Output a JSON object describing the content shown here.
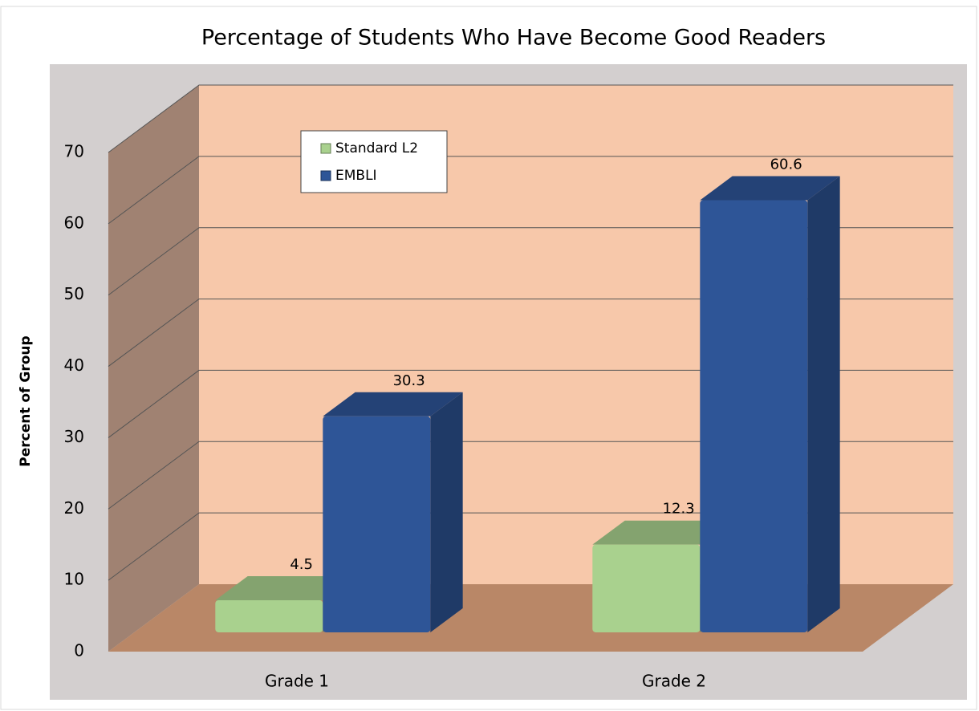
{
  "chart_data": {
    "type": "bar3d",
    "title": "Percentage of Students Who Have Become Good Readers",
    "y_label": "Percent of Group",
    "categories": [
      "Grade 1",
      "Grade 2"
    ],
    "series": [
      {
        "name": "Standard L2",
        "color": "#a9d18e",
        "values": [
          4.5,
          12.3
        ]
      },
      {
        "name": "EMBLI",
        "color": "#2e5597",
        "values": [
          30.3,
          60.6
        ]
      }
    ],
    "ylim": [
      0,
      70
    ],
    "yticks": [
      0,
      10,
      20,
      30,
      40,
      50,
      60,
      70
    ],
    "grid": true,
    "legend": "upper left"
  }
}
